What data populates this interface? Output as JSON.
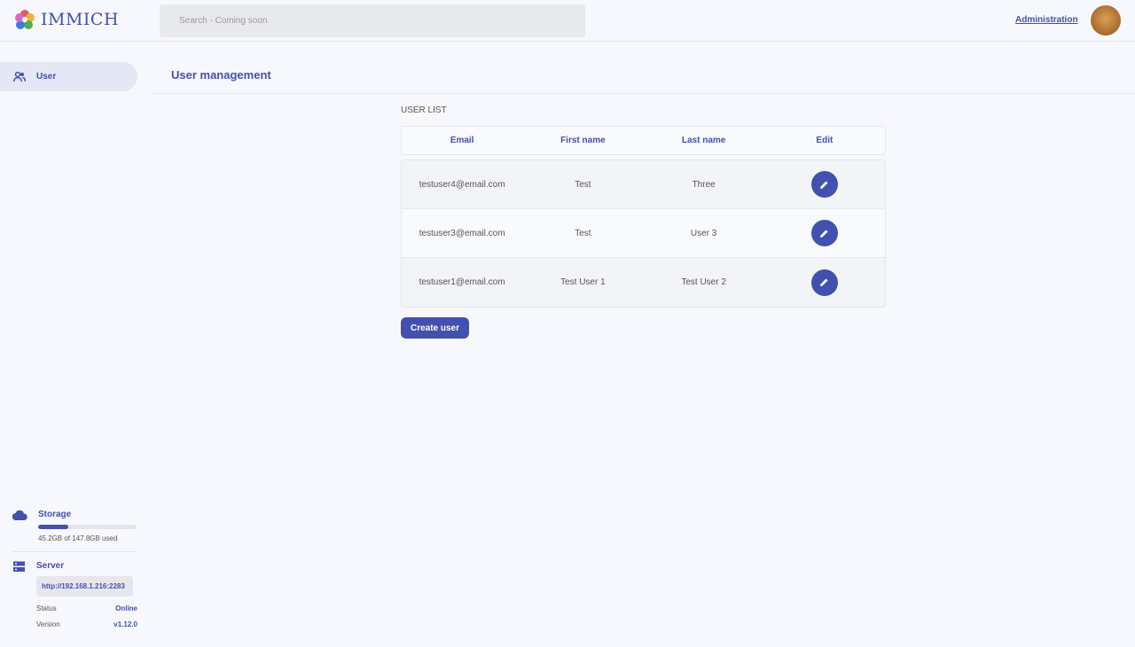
{
  "header": {
    "app_name": "IMMICH",
    "search_placeholder": "Search - Coming soon",
    "admin_link": "Administration",
    "accent_color": "#4250af"
  },
  "sidebar": {
    "items": [
      {
        "label": "User",
        "icon": "users-icon",
        "active": true
      }
    ],
    "storage": {
      "label": "Storage",
      "used_text": "45.2GB of 147.8GB used",
      "used_fraction": 0.306
    },
    "server": {
      "label": "Server",
      "url": "http://192.168.1.216:2283",
      "status_label": "Status",
      "status_value": "Online",
      "version_label": "Version",
      "version_value": "v1.12.0"
    }
  },
  "main": {
    "title": "User management",
    "list_label": "USER LIST",
    "columns": [
      "Email",
      "First name",
      "Last name",
      "Edit"
    ],
    "rows": [
      {
        "email": "testuser4@email.com",
        "first": "Test",
        "last": "Three"
      },
      {
        "email": "testuser3@email.com",
        "first": "Test",
        "last": "User 3"
      },
      {
        "email": "testuser1@email.com",
        "first": "Test User 1",
        "last": "Test User 2"
      }
    ],
    "create_button": "Create user"
  }
}
